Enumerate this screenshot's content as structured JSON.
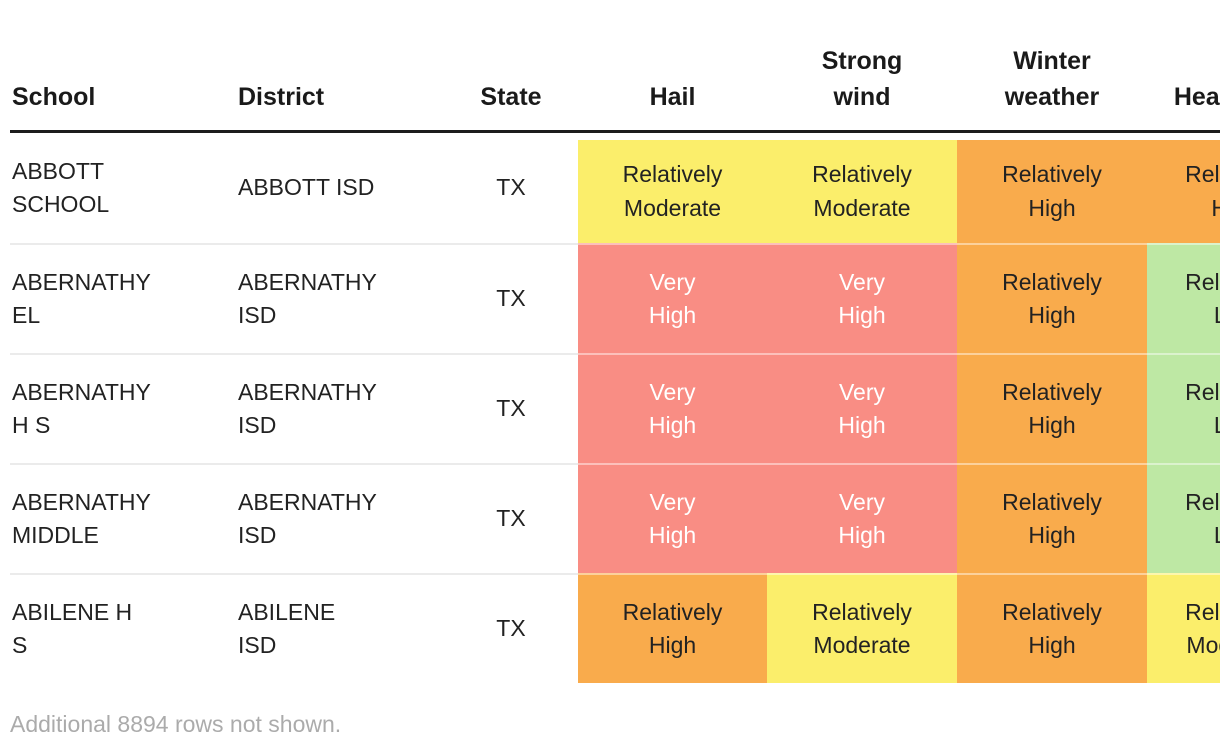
{
  "colors": {
    "levels": {
      "very_high": {
        "bg": "#F98D84",
        "fg": "#FFFFFF"
      },
      "relatively_high": {
        "bg": "#F9AB4C",
        "fg": "#222222"
      },
      "relatively_moderate": {
        "bg": "#FBEE6B",
        "fg": "#222222"
      },
      "relatively_low": {
        "bg": "#BEE8A4",
        "fg": "#222222"
      }
    },
    "header_rule": "#1C1C1C",
    "row_divider_on_white": "#EBEBEB",
    "footer_text": "#ABABAB"
  },
  "chart_data": {
    "type": "table",
    "columns": [
      {
        "id": "school",
        "label": "School",
        "type": "text",
        "align": "left"
      },
      {
        "id": "district",
        "label": "District",
        "type": "text",
        "align": "left"
      },
      {
        "id": "state",
        "label": "State",
        "type": "text",
        "align": "center"
      },
      {
        "id": "hail",
        "label": "Hail",
        "type": "rating",
        "align": "center"
      },
      {
        "id": "strong_wind",
        "label": "Strong\nwind",
        "type": "rating",
        "align": "center"
      },
      {
        "id": "winter_weather",
        "label": "Winter\nweather",
        "type": "rating",
        "align": "center"
      },
      {
        "id": "heat_wave",
        "label": "Heat wave",
        "type": "rating",
        "align": "center",
        "note": "clipped at right edge of viewport"
      }
    ],
    "rows": [
      {
        "school": "ABBOTT\nSCHOOL",
        "district": "ABBOTT ISD",
        "state": "TX",
        "hail": {
          "text": "Relatively\nModerate",
          "level": "relatively_moderate"
        },
        "strong_wind": {
          "text": "Relatively\nModerate",
          "level": "relatively_moderate"
        },
        "winter_weather": {
          "text": "Relatively\nHigh",
          "level": "relatively_high"
        },
        "heat_wave": {
          "text": "Relatively\nHigh",
          "level": "relatively_high"
        }
      },
      {
        "school": "ABERNATHY\nEL",
        "district": "ABERNATHY\nISD",
        "state": "TX",
        "hail": {
          "text": "Very\nHigh",
          "level": "very_high"
        },
        "strong_wind": {
          "text": "Very\nHigh",
          "level": "very_high"
        },
        "winter_weather": {
          "text": "Relatively\nHigh",
          "level": "relatively_high"
        },
        "heat_wave": {
          "text": "Relatively\nLow",
          "level": "relatively_low"
        }
      },
      {
        "school": "ABERNATHY\nH S",
        "district": "ABERNATHY\nISD",
        "state": "TX",
        "hail": {
          "text": "Very\nHigh",
          "level": "very_high"
        },
        "strong_wind": {
          "text": "Very\nHigh",
          "level": "very_high"
        },
        "winter_weather": {
          "text": "Relatively\nHigh",
          "level": "relatively_high"
        },
        "heat_wave": {
          "text": "Relatively\nLow",
          "level": "relatively_low"
        }
      },
      {
        "school": "ABERNATHY\nMIDDLE",
        "district": "ABERNATHY\nISD",
        "state": "TX",
        "hail": {
          "text": "Very\nHigh",
          "level": "very_high"
        },
        "strong_wind": {
          "text": "Very\nHigh",
          "level": "very_high"
        },
        "winter_weather": {
          "text": "Relatively\nHigh",
          "level": "relatively_high"
        },
        "heat_wave": {
          "text": "Relatively\nLow",
          "level": "relatively_low"
        }
      },
      {
        "school": "ABILENE H\nS",
        "district": "ABILENE\nISD",
        "state": "TX",
        "hail": {
          "text": "Relatively\nHigh",
          "level": "relatively_high"
        },
        "strong_wind": {
          "text": "Relatively\nModerate",
          "level": "relatively_moderate"
        },
        "winter_weather": {
          "text": "Relatively\nHigh",
          "level": "relatively_high"
        },
        "heat_wave": {
          "text": "Relatively\nModerate",
          "level": "relatively_moderate"
        }
      }
    ]
  },
  "footer": {
    "note": "Additional 8894 rows not shown."
  }
}
